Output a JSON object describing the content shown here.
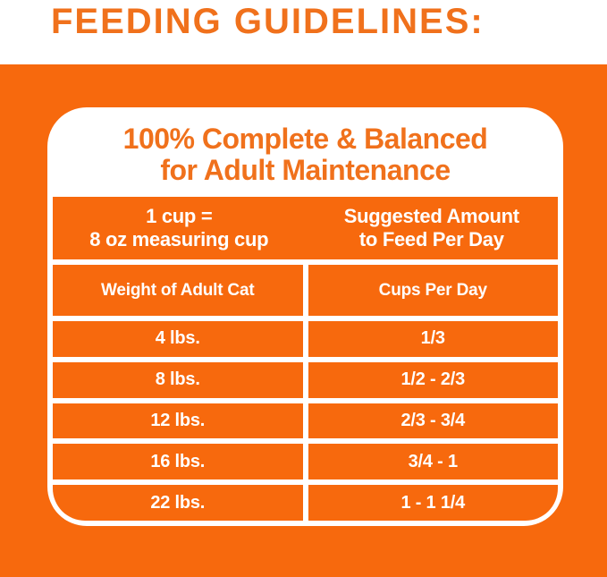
{
  "page": {
    "title": "FEEDING GUIDELINES:"
  },
  "card": {
    "title_line1": "100% Complete & Balanced",
    "title_line2": "for Adult Maintenance"
  },
  "table": {
    "header_left_line1": "1 cup =",
    "header_left_line2": "8 oz measuring cup",
    "header_right_line1": "Suggested Amount",
    "header_right_line2": "to Feed Per Day",
    "columns": [
      "Weight of Adult Cat",
      "Cups Per Day"
    ],
    "rows": [
      {
        "weight": "4 lbs.",
        "cups": "1/3"
      },
      {
        "weight": "8 lbs.",
        "cups": "1/2 - 2/3"
      },
      {
        "weight": "12 lbs.",
        "cups": "2/3 - 3/4"
      },
      {
        "weight": "16 lbs.",
        "cups": "3/4 - 1"
      },
      {
        "weight": "22 lbs.",
        "cups": "1 - 1 1/4"
      }
    ]
  },
  "colors": {
    "orange": "#F7690D",
    "heading": "#F0711C",
    "white": "#FFFFFF"
  }
}
